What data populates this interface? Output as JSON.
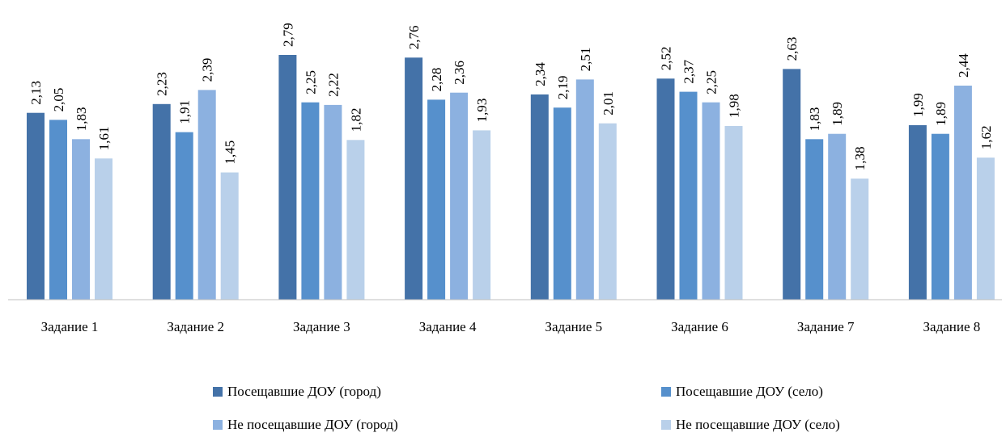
{
  "chart_data": {
    "type": "bar",
    "categories": [
      "Задание 1",
      "Задание 2",
      "Задание 3",
      "Задание 4",
      "Задание 5",
      "Задание 6",
      "Задание 7",
      "Задание 8"
    ],
    "series": [
      {
        "name": "Посещавшие ДОУ (город)",
        "color": "#4472a8",
        "values": [
          2.13,
          2.23,
          2.79,
          2.76,
          2.34,
          2.52,
          2.63,
          1.99
        ],
        "labels": [
          "2,13",
          "2,23",
          "2,79",
          "2,76",
          "2,34",
          "2,52",
          "2,63",
          "1,99"
        ]
      },
      {
        "name": "Посещавшие ДОУ (село)",
        "color": "#5690cc",
        "values": [
          2.05,
          1.91,
          2.25,
          2.28,
          2.19,
          2.37,
          1.83,
          1.89
        ],
        "labels": [
          "2,05",
          "1,91",
          "2,25",
          "2,28",
          "2,19",
          "2,37",
          "1,83",
          "1,89"
        ]
      },
      {
        "name": "Не посещавшие ДОУ (город)",
        "color": "#8cb1e0",
        "values": [
          1.83,
          2.39,
          2.22,
          2.36,
          2.51,
          2.25,
          1.89,
          2.44
        ],
        "labels": [
          "1,83",
          "2,39",
          "2,22",
          "2,36",
          "2,51",
          "2,25",
          "1,89",
          "2,44"
        ]
      },
      {
        "name": "Не посещавшие ДОУ (село)",
        "color": "#b9d0ea",
        "values": [
          1.61,
          1.45,
          1.82,
          1.93,
          2.01,
          1.98,
          1.38,
          1.62
        ],
        "labels": [
          "1,61",
          "1,45",
          "1,82",
          "1,93",
          "2,01",
          "1,98",
          "1,38",
          "1,62"
        ]
      }
    ],
    "ylim": [
      0,
      3
    ],
    "axis_line_color": "#bfbfbf",
    "grid": false,
    "legend_position": "bottom",
    "data_label_rotation": "vertical"
  }
}
